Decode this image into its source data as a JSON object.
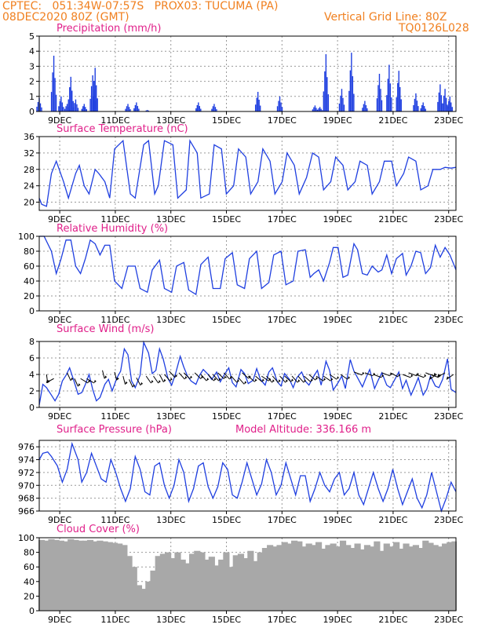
{
  "header": {
    "line1": "CPTEC:   051:34W-07:57S   PROX03: TUCUMA (PA)",
    "line2": "08DEC2020 80Z (GMT)",
    "grid_note": "Vertical Grid Line: 80Z",
    "code": "TQ0126L028"
  },
  "colors": {
    "header": "#f08020",
    "title": "#e0208a",
    "series": "#1f3fe0",
    "cloud": "#a8a8a8",
    "arrows": "#000000"
  },
  "chart_data": [
    {
      "type": "bar",
      "title": "Precipitation (mm/h)",
      "x_ticks": [
        "9DEC",
        "11DEC",
        "13DEC",
        "15DEC",
        "17DEC",
        "19DEC",
        "21DEC",
        "23DEC"
      ],
      "ylim": [
        0,
        5
      ],
      "y_ticks": [
        0,
        1,
        2,
        3,
        4,
        5
      ],
      "grid": true,
      "events": [
        [
          8.6,
          0.9
        ],
        [
          9.8,
          3.7
        ],
        [
          10.4,
          1.0
        ],
        [
          10.9,
          0.5
        ],
        [
          11.2,
          2.3
        ],
        [
          11.6,
          0.8
        ],
        [
          12.3,
          0.5
        ],
        [
          13.0,
          2.4
        ],
        [
          13.2,
          2.9
        ],
        [
          15.9,
          0.5
        ],
        [
          16.6,
          0.6
        ],
        [
          17.5,
          0.1
        ],
        [
          21.7,
          0.6
        ],
        [
          23.0,
          0.5
        ],
        [
          26.6,
          1.3
        ],
        [
          28.4,
          1.0
        ],
        [
          31.3,
          0.4
        ],
        [
          31.7,
          0.3
        ],
        [
          32.2,
          3.8
        ],
        [
          33.5,
          1.5
        ],
        [
          34.3,
          3.9
        ],
        [
          35.4,
          0.7
        ],
        [
          36.6,
          2.5
        ],
        [
          37.4,
          3.1
        ],
        [
          38.2,
          2.7
        ],
        [
          39.6,
          1.2
        ],
        [
          40.2,
          0.6
        ],
        [
          41.6,
          1.8
        ],
        [
          42.0,
          1.5
        ],
        [
          42.4,
          1.0
        ]
      ]
    },
    {
      "type": "line",
      "title": "Surface Temperature (nC)",
      "x_ticks": [
        "9DEC",
        "11DEC",
        "13DEC",
        "15DEC",
        "17DEC",
        "19DEC",
        "21DEC",
        "23DEC"
      ],
      "ylim": [
        18,
        36
      ],
      "y_ticks": [
        20,
        24,
        28,
        32,
        36
      ],
      "grid": true,
      "x": [
        8.6,
        8.8,
        9.2,
        9.6,
        10.0,
        10.6,
        11.0,
        11.6,
        11.9,
        12.3,
        12.7,
        13.2,
        13.5,
        14.0,
        14.4,
        14.8,
        15.5,
        16.1,
        16.5,
        17.2,
        17.6,
        18.1,
        18.4,
        18.9,
        19.6,
        20.0,
        20.7,
        21.0,
        21.6,
        21.9,
        22.6,
        23.0,
        23.6,
        24.0,
        24.6,
        25.0,
        25.6,
        26.0,
        26.6,
        27.0,
        27.6,
        28.0,
        28.6,
        29.0,
        29.6,
        30.0,
        30.6,
        31.1,
        31.6,
        32.0,
        32.6,
        33.0,
        33.6,
        34.0,
        34.6,
        35.0,
        35.6,
        36.0,
        36.6,
        37.0,
        37.6,
        38.0,
        38.6,
        39.0,
        39.6,
        40.0,
        40.6,
        41.0,
        41.6,
        42.0,
        42.5,
        42.9
      ],
      "y": [
        21,
        19.5,
        19,
        27,
        30,
        25,
        21,
        27,
        29,
        24,
        22,
        28,
        27,
        25,
        21,
        33,
        35,
        22,
        21,
        34,
        35,
        22,
        24,
        35,
        34,
        21,
        23,
        35,
        32,
        21,
        22,
        34,
        33,
        22,
        24,
        33,
        31,
        22,
        25,
        33,
        30,
        22,
        25,
        32,
        29,
        22,
        26,
        32,
        31,
        23,
        25,
        31,
        29,
        23,
        25,
        30,
        29,
        22,
        25,
        30,
        30,
        24,
        27,
        31,
        30,
        23,
        24,
        28,
        28,
        28.5,
        28.3,
        28.5
      ]
    },
    {
      "type": "line",
      "title": "Relative Humidity (%)",
      "x_ticks": [
        "9DEC",
        "11DEC",
        "13DEC",
        "15DEC",
        "17DEC",
        "19DEC",
        "21DEC",
        "23DEC"
      ],
      "ylim": [
        0,
        100
      ],
      "y_ticks": [
        0,
        20,
        40,
        60,
        80,
        100
      ],
      "grid": true,
      "x": [
        8.6,
        9.0,
        9.6,
        10.0,
        10.4,
        10.8,
        11.2,
        11.6,
        12.0,
        12.4,
        12.8,
        13.2,
        13.6,
        14.0,
        14.4,
        14.8,
        15.4,
        15.9,
        16.5,
        16.9,
        17.5,
        17.9,
        18.5,
        18.9,
        19.5,
        19.9,
        20.5,
        20.9,
        21.5,
        21.9,
        22.5,
        22.9,
        23.5,
        23.9,
        24.5,
        24.9,
        25.5,
        25.9,
        26.5,
        26.9,
        27.5,
        27.9,
        28.5,
        28.9,
        29.5,
        29.9,
        30.5,
        30.9,
        31.2,
        31.6,
        32.0,
        32.5,
        32.8,
        33.2,
        33.6,
        34.0,
        34.5,
        34.8,
        35.2,
        35.6,
        36.0,
        36.5,
        36.8,
        37.2,
        37.6,
        38.0,
        38.5,
        38.8,
        39.2,
        39.6,
        40.0,
        40.4,
        40.8,
        41.2,
        41.6,
        42.0,
        42.4,
        42.9
      ],
      "y": [
        100,
        100,
        80,
        50,
        70,
        95,
        95,
        60,
        50,
        70,
        95,
        90,
        75,
        88,
        88,
        40,
        30,
        60,
        60,
        30,
        25,
        55,
        68,
        30,
        25,
        60,
        65,
        28,
        22,
        62,
        72,
        30,
        30,
        70,
        78,
        35,
        30,
        70,
        80,
        30,
        38,
        75,
        80,
        35,
        40,
        80,
        82,
        45,
        50,
        55,
        40,
        65,
        85,
        85,
        45,
        48,
        90,
        82,
        50,
        48,
        60,
        52,
        55,
        75,
        50,
        70,
        77,
        48,
        60,
        80,
        78,
        50,
        58,
        88,
        72,
        85,
        75,
        55
      ],
      "grid_note": ""
    },
    {
      "type": "line",
      "title": "Surface Wind (m/s)",
      "x_ticks": [
        "9DEC",
        "11DEC",
        "13DEC",
        "15DEC",
        "17DEC",
        "19DEC",
        "21DEC",
        "23DEC"
      ],
      "ylim": [
        0,
        8
      ],
      "y_ticks": [
        0,
        2,
        4,
        6,
        8
      ],
      "grid": true,
      "x": [
        8.6,
        8.9,
        9.2,
        9.6,
        9.9,
        10.2,
        10.5,
        10.8,
        11.1,
        11.5,
        11.8,
        12.1,
        12.4,
        12.7,
        13.0,
        13.3,
        13.6,
        14.0,
        14.3,
        14.6,
        15.0,
        15.3,
        15.6,
        15.9,
        16.2,
        16.5,
        16.9,
        17.2,
        17.6,
        17.9,
        18.2,
        18.5,
        18.8,
        19.2,
        19.5,
        19.8,
        20.2,
        20.5,
        20.8,
        21.1,
        21.5,
        21.8,
        22.1,
        22.5,
        22.8,
        23.2,
        23.5,
        23.8,
        24.2,
        24.5,
        24.8,
        25.2,
        25.5,
        25.8,
        26.2,
        26.5,
        26.8,
        27.2,
        27.5,
        27.8,
        28.2,
        28.5,
        28.8,
        29.2,
        29.5,
        29.8,
        30.2,
        30.5,
        30.8,
        31.2,
        31.5,
        31.8,
        32.2,
        32.5,
        32.8,
        33.2,
        33.5,
        33.8,
        34.2,
        34.5,
        34.8,
        35.2,
        35.5,
        35.8,
        36.2,
        36.5,
        36.8,
        37.2,
        37.5,
        37.8,
        38.2,
        38.5,
        38.8,
        39.2,
        39.5,
        39.8,
        40.2,
        40.5,
        40.8,
        41.2,
        41.5,
        41.8,
        42.2,
        42.5,
        42.9
      ],
      "y": [
        0.3,
        2.8,
        2.4,
        1.5,
        0.8,
        1.6,
        3.2,
        3.9,
        4.8,
        3.0,
        1.6,
        1.8,
        2.8,
        4.0,
        2.2,
        0.8,
        1.2,
        2.8,
        3.4,
        2.0,
        3.6,
        4.4,
        7.1,
        6.4,
        3.2,
        2.4,
        3.9,
        7.9,
        6.6,
        4.1,
        4.5,
        7.1,
        5.9,
        3.5,
        2.7,
        4.0,
        6.2,
        4.9,
        3.8,
        3.2,
        2.8,
        3.9,
        4.6,
        4.0,
        3.4,
        4.3,
        3.1,
        3.9,
        4.8,
        3.0,
        2.5,
        4.6,
        4.1,
        2.9,
        3.3,
        4.7,
        3.4,
        2.7,
        4.3,
        4.8,
        3.1,
        2.6,
        4.1,
        3.4,
        2.4,
        3.6,
        4.3,
        3.2,
        2.7,
        3.8,
        4.5,
        2.7,
        5.6,
        4.5,
        2.1,
        3.0,
        3.8,
        2.3,
        5.8,
        4.4,
        3.6,
        2.5,
        3.6,
        4.6,
        2.3,
        3.3,
        4.2,
        2.7,
        2.4,
        3.2,
        4.3,
        2.3,
        3.3,
        1.5,
        2.5,
        3.6,
        1.5,
        2.2,
        3.8,
        2.6,
        2.4,
        3.4,
        5.9,
        2.2,
        1.8
      ],
      "vectors": [
        [
          9.2,
          2,
          4
        ],
        [
          9.8,
          4,
          3.5
        ],
        [
          10.9,
          2.5,
          4.2
        ],
        [
          11.5,
          2.5,
          3.5
        ],
        [
          12.0,
          3.5,
          3.5
        ],
        [
          12.5,
          3.5,
          3.5
        ],
        [
          13.8,
          2.2,
          4.5
        ],
        [
          14.8,
          2.2,
          4.3
        ],
        [
          15.5,
          2.2,
          3.8
        ],
        [
          16.0,
          2.5,
          3.4
        ],
        [
          16.6,
          2.6,
          3.6
        ],
        [
          17.4,
          2.8,
          3.8
        ],
        [
          18.0,
          2.8,
          3.8
        ],
        [
          18.5,
          2.6,
          4.0
        ],
        [
          18.9,
          3.0,
          4.0
        ],
        [
          19.3,
          3.0,
          4.4
        ],
        [
          20.1,
          3.0,
          4.2
        ],
        [
          20.5,
          3.1,
          4.2
        ],
        [
          21.4,
          3.1,
          4.2
        ],
        [
          21.9,
          3.0,
          4.0
        ],
        [
          22.5,
          3.0,
          4.0
        ],
        [
          22.9,
          3.0,
          4.0
        ],
        [
          23.3,
          3.1,
          4.2
        ],
        [
          23.8,
          3.0,
          4.2
        ],
        [
          24.4,
          3.0,
          3.8
        ],
        [
          25.0,
          3.0,
          3.6
        ],
        [
          25.3,
          3.2,
          4.2
        ],
        [
          25.8,
          3.2,
          3.8
        ],
        [
          26.4,
          3.2,
          3.8
        ],
        [
          26.9,
          3.4,
          3.8
        ],
        [
          27.3,
          3.0,
          3.8
        ],
        [
          27.8,
          3.0,
          3.8
        ],
        [
          28.4,
          3.0,
          3.8
        ],
        [
          28.8,
          3.2,
          3.8
        ],
        [
          29.4,
          3.0,
          3.8
        ],
        [
          29.9,
          3.0,
          3.8
        ],
        [
          30.4,
          3.2,
          3.8
        ],
        [
          30.8,
          3.2,
          4.0
        ],
        [
          31.4,
          3.4,
          3.8
        ],
        [
          32.0,
          3.4,
          3.8
        ],
        [
          32.5,
          3.4,
          4.0
        ],
        [
          33.4,
          3.4,
          4.0
        ],
        [
          34.5,
          3.8,
          4.3
        ],
        [
          35.4,
          3.8,
          4.2
        ],
        [
          36.1,
          3.8,
          4.0
        ],
        [
          36.8,
          3.8,
          4.2
        ],
        [
          37.5,
          3.6,
          4.2
        ],
        [
          38.5,
          3.8,
          4.0
        ],
        [
          39.0,
          3.8,
          4.2
        ],
        [
          39.6,
          3.8,
          4.0
        ],
        [
          40.4,
          3.8,
          4.2
        ],
        [
          40.8,
          3.8,
          4.0
        ],
        [
          41.3,
          4.2,
          4.0
        ],
        [
          42.0,
          4.0,
          4.2
        ],
        [
          42.7,
          4.2,
          4.0
        ]
      ]
    },
    {
      "type": "line",
      "title": "Surface Pressure (hPa)",
      "annotation": "Model Altitude: 336.166 m",
      "x_ticks": [
        "9DEC",
        "11DEC",
        "13DEC",
        "15DEC",
        "17DEC",
        "19DEC",
        "21DEC",
        "23DEC"
      ],
      "ylim": [
        966,
        977
      ],
      "y_ticks": [
        966,
        968,
        970,
        972,
        974,
        976
      ],
      "grid": true,
      "x": [
        8.6,
        8.9,
        9.3,
        9.6,
        10.1,
        10.5,
        10.9,
        11.3,
        11.8,
        12.1,
        12.5,
        12.9,
        13.3,
        13.7,
        14.1,
        14.5,
        14.9,
        15.3,
        15.7,
        16.1,
        16.5,
        16.9,
        17.3,
        17.7,
        18.1,
        18.5,
        18.9,
        19.3,
        19.7,
        20.1,
        20.5,
        20.9,
        21.3,
        21.7,
        22.1,
        22.5,
        22.9,
        23.3,
        23.7,
        24.1,
        24.5,
        24.9,
        25.3,
        25.7,
        26.1,
        26.5,
        26.9,
        27.3,
        27.7,
        28.1,
        28.5,
        28.9,
        29.3,
        29.7,
        30.1,
        30.5,
        30.9,
        31.3,
        31.7,
        32.1,
        32.5,
        32.9,
        33.3,
        33.7,
        34.1,
        34.5,
        34.9,
        35.3,
        35.7,
        36.1,
        36.5,
        36.9,
        37.3,
        37.7,
        38.1,
        38.5,
        38.9,
        39.3,
        39.7,
        40.1,
        40.5,
        40.9,
        41.3,
        41.7,
        42.1,
        42.5,
        42.9
      ],
      "y": [
        974,
        975,
        975.2,
        974.5,
        973,
        970.5,
        972.5,
        976.5,
        974,
        970.5,
        972,
        975,
        973,
        971,
        970.5,
        974,
        972,
        969.5,
        967.5,
        969.5,
        974.5,
        972.5,
        969,
        968.5,
        973,
        973.5,
        970,
        968,
        970,
        974,
        972,
        967.5,
        969.5,
        973,
        973.5,
        969.8,
        968,
        969.8,
        973.5,
        972.5,
        968.5,
        968,
        970.5,
        973.5,
        971,
        968.5,
        970.2,
        974,
        972,
        968.5,
        970,
        973.5,
        971,
        968.5,
        971.5,
        971.5,
        967.5,
        969.5,
        972,
        970,
        969,
        971,
        972,
        968.5,
        969.5,
        972,
        968.5,
        967,
        969.5,
        972,
        969.5,
        967.5,
        969.5,
        972.5,
        969.5,
        967,
        969,
        971,
        968,
        966.5,
        968.5,
        972,
        969,
        966,
        968,
        970.5,
        969
      ]
    },
    {
      "type": "bar",
      "title": "Cloud Cover (%)",
      "x_ticks": [
        "9DEC",
        "11DEC",
        "13DEC",
        "15DEC",
        "17DEC",
        "19DEC",
        "21DEC",
        "23DEC"
      ],
      "ylim": [
        0,
        100
      ],
      "y_ticks": [
        0,
        20,
        40,
        60,
        80,
        100
      ],
      "grid": true,
      "x": [
        8.6,
        9.0,
        9.4,
        9.8,
        10.2,
        10.6,
        11.0,
        11.4,
        11.8,
        12.2,
        12.6,
        13.0,
        13.4,
        13.8,
        14.2,
        14.6,
        15.0,
        15.4,
        15.8,
        16.2,
        16.6,
        17.0,
        17.4,
        17.8,
        18.2,
        18.6,
        19.0,
        19.4,
        19.8,
        20.2,
        20.6,
        21.0,
        21.4,
        21.8,
        22.2,
        22.6,
        23.0,
        23.4,
        23.8,
        24.2,
        24.6,
        25.0,
        25.4,
        25.8,
        26.2,
        26.6,
        27.0,
        27.4,
        27.8,
        28.2,
        28.6,
        29.0,
        29.4,
        29.8,
        30.2,
        30.6,
        31.0,
        31.4,
        31.8,
        32.2,
        32.6,
        33.0,
        33.4,
        33.8,
        34.2,
        34.6,
        35.0,
        35.4,
        35.8,
        36.2,
        36.6,
        37.0,
        37.4,
        37.8,
        38.2,
        38.6,
        39.0,
        39.4,
        39.8,
        40.2,
        40.6,
        41.0,
        41.4,
        41.8,
        42.2,
        42.6
      ],
      "values": [
        97,
        96,
        98,
        97,
        96,
        95,
        98,
        97,
        96,
        96,
        97,
        95,
        96,
        95,
        94,
        93,
        92,
        90,
        75,
        60,
        35,
        30,
        40,
        55,
        75,
        78,
        80,
        72,
        80,
        70,
        65,
        78,
        82,
        80,
        70,
        74,
        62,
        70,
        80,
        60,
        76,
        78,
        72,
        82,
        68,
        80,
        86,
        90,
        88,
        90,
        94,
        92,
        96,
        95,
        88,
        92,
        90,
        94,
        85,
        90,
        92,
        88,
        96,
        90,
        86,
        92,
        84,
        90,
        88,
        95,
        82,
        92,
        88,
        94,
        85,
        92,
        88,
        90,
        86,
        96,
        93,
        90,
        88,
        92,
        94,
        95
      ]
    }
  ]
}
